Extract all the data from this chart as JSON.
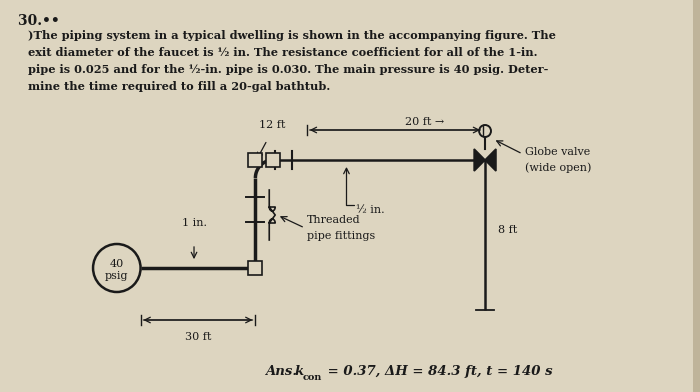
{
  "title_number": "30.  ••",
  "problem_text_line1": ")The piping system in a typical dwelling is shown in the accompanying figure. The",
  "problem_text_line2": "exit diameter of the faucet is ½ in. The resistance coefficient for all of the 1-in.",
  "problem_text_line3": "pipe is 0.025 and for the ½-in. pipe is 0.030. The main pressure is 40 psig. Deter-",
  "problem_text_line4": "mine the time required to fill a 20-gal bathtub.",
  "answer_line1": "Ans.",
  "answer_line2": "k",
  "answer_line3": "con",
  "answer_main": " = 0.37, ΔH = 84.3 ft, t = 140 s",
  "label_12ft": "12 ft",
  "label_20ft": "20 ft →",
  "label_30ft": "30 ft",
  "label_8ft": "8 ft",
  "label_1in": "1 in.",
  "label_half_in": "½ in.",
  "label_globe": "Globe valve",
  "label_globe2": "(wide open)",
  "label_threaded": "Threaded",
  "label_pipe_fittings": "pipe fittings",
  "label_40psig_1": "40",
  "label_40psig_2": "psig",
  "bg_color": "#bfb49a",
  "paper_color": "#e8e0d0",
  "text_color": "#000000",
  "pipe_color": "#1a1a1a"
}
